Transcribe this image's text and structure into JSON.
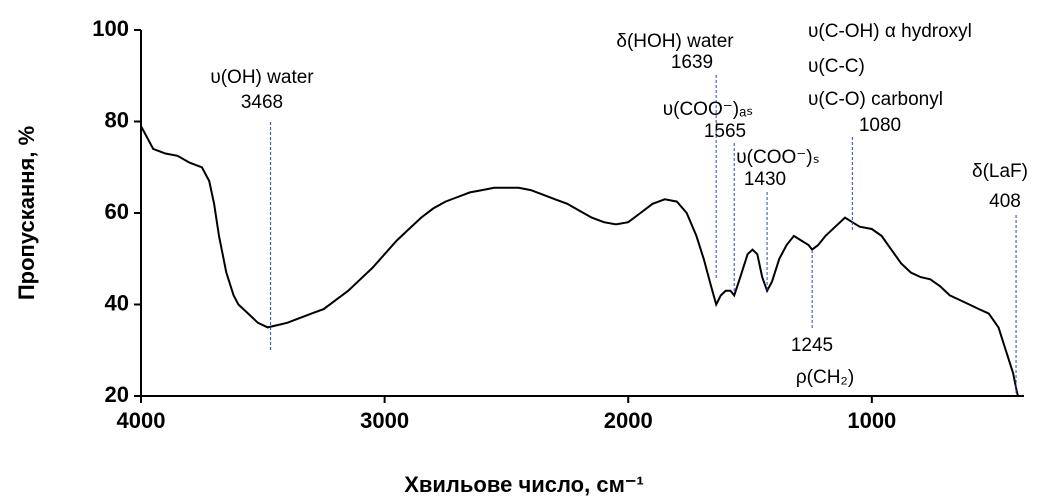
{
  "chart_data": {
    "type": "line",
    "x_label": "Хвильове число, см⁻¹",
    "y_label": "Пропускання, %",
    "xlim": [
      4000,
      400
    ],
    "ylim": [
      20,
      100
    ],
    "xticks": [
      4000,
      3000,
      2000,
      1000
    ],
    "yticks": [
      20,
      40,
      60,
      80,
      100
    ],
    "grid": false,
    "x": [
      4000,
      3950,
      3900,
      3850,
      3800,
      3750,
      3720,
      3700,
      3680,
      3650,
      3620,
      3600,
      3560,
      3520,
      3480,
      3440,
      3400,
      3350,
      3300,
      3250,
      3200,
      3150,
      3100,
      3050,
      3000,
      2950,
      2900,
      2850,
      2800,
      2750,
      2700,
      2650,
      2600,
      2550,
      2500,
      2450,
      2400,
      2350,
      2300,
      2250,
      2200,
      2150,
      2100,
      2050,
      2000,
      1950,
      1900,
      1850,
      1800,
      1760,
      1720,
      1690,
      1660,
      1639,
      1620,
      1600,
      1580,
      1565,
      1540,
      1510,
      1490,
      1470,
      1450,
      1430,
      1410,
      1380,
      1350,
      1320,
      1290,
      1260,
      1245,
      1220,
      1190,
      1150,
      1110,
      1080,
      1050,
      1000,
      960,
      920,
      880,
      840,
      800,
      760,
      720,
      680,
      640,
      600,
      560,
      520,
      480,
      450,
      420,
      405,
      400
    ],
    "series": [
      {
        "name": "spectrum",
        "color": "#000000",
        "values": [
          79,
          74,
          73,
          72.5,
          71,
          70,
          67,
          62,
          55,
          47,
          42,
          40,
          38,
          36,
          35,
          35.5,
          36,
          37,
          38,
          39,
          41,
          43,
          45.5,
          48,
          51,
          54,
          56.5,
          59,
          61,
          62.5,
          63.5,
          64.5,
          65,
          65.5,
          65.5,
          65.5,
          65,
          64,
          63,
          62,
          60.5,
          59,
          58,
          57.5,
          58,
          60,
          62,
          63,
          62.5,
          60,
          55,
          50,
          44,
          40,
          42,
          43,
          43,
          42,
          46,
          51,
          52,
          51,
          46,
          43,
          45,
          50,
          53,
          55,
          54,
          53,
          52,
          53,
          55,
          57,
          59,
          58,
          57,
          56.5,
          55,
          52,
          49,
          47,
          46,
          45.5,
          44,
          42,
          41,
          40,
          39,
          38,
          35,
          30,
          25,
          21,
          20
        ]
      }
    ],
    "annotations": [
      {
        "wavenumber": 3468,
        "label": [
          "υ(OH) water"
        ]
      },
      {
        "wavenumber": 1639,
        "label": [
          "δ(HOH) water"
        ]
      },
      {
        "wavenumber": 1565,
        "label": [
          "υ(COO⁻)ₐₛ"
        ]
      },
      {
        "wavenumber": 1430,
        "label": [
          "υ(COO⁻)ₛ"
        ]
      },
      {
        "wavenumber": 1245,
        "label": [
          "ρ(CH₂)"
        ]
      },
      {
        "wavenumber": 1080,
        "label": [
          "υ(C-OH) α hydroxyl",
          "υ(C-C)",
          "υ(C-O) carbonyl"
        ]
      },
      {
        "wavenumber": 408,
        "label": [
          "δ(LaF)"
        ]
      }
    ]
  }
}
